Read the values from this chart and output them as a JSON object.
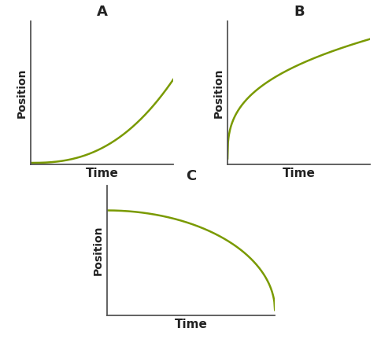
{
  "curve_color": "#7a9a01",
  "line_width": 1.8,
  "axis_color": "#555555",
  "label_color": "#222222",
  "background_color": "#ffffff",
  "title_fontsize": 13,
  "label_fontsize": 10,
  "xlabel_fontsize": 11,
  "title_fontweight": "bold",
  "xlabel_fontweight": "bold",
  "titles": [
    "A",
    "B",
    "C"
  ],
  "xlabel": "Time",
  "ylabel": "Position",
  "fig_width": 4.85,
  "fig_height": 4.45
}
